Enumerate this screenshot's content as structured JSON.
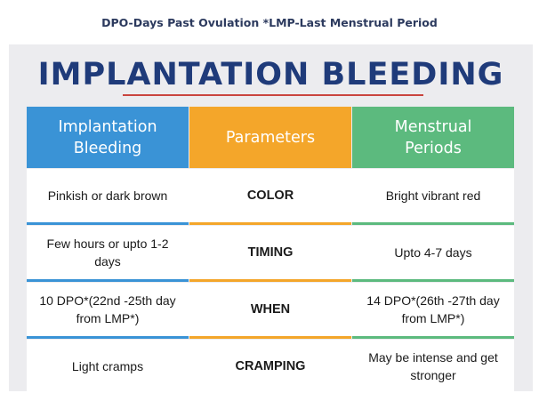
{
  "caption": "DPO-Days Past Ovulation *LMP-Last Menstrual Period",
  "title": "IMPLANTATION BLEEDING",
  "headers": {
    "implantation": [
      "Implantation",
      "Bleeding"
    ],
    "parameters": "Parameters",
    "menstrual": [
      "Menstrual",
      "Periods"
    ]
  },
  "rows": [
    {
      "param": "COLOR",
      "implantation": [
        "Pinkish or dark brown"
      ],
      "menstrual": [
        "Bright vibrant red"
      ]
    },
    {
      "param": "TIMING",
      "implantation": [
        "Few hours or upto 1-2",
        "days"
      ],
      "menstrual": [
        "Upto 4-7 days"
      ]
    },
    {
      "param": "WHEN",
      "implantation": [
        "10 DPO*(22nd -25th day",
        "from LMP*)"
      ],
      "menstrual": [
        "14 DPO*(26th -27th day",
        "from LMP*)"
      ]
    },
    {
      "param": "CRAMPING",
      "implantation": [
        "Light cramps"
      ],
      "menstrual": [
        "May be intense and get",
        "stronger"
      ]
    }
  ],
  "colors": {
    "implantation_header": "#3a93d6",
    "parameters_header": "#f4a62a",
    "menstrual_header": "#5cba7e",
    "title": "#1f3b7a",
    "title_rule": "#c9453e"
  }
}
